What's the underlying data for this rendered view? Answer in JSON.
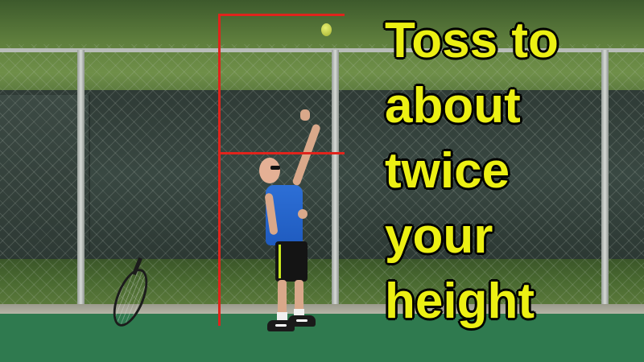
{
  "caption": {
    "lines": [
      "Toss to",
      "about",
      "twice",
      "your",
      "height"
    ],
    "color": "#ecf013"
  },
  "markers": {
    "color": "#e0241c"
  },
  "scene": {
    "court_color": "#2f7a4f",
    "shirt_color": "#2d6fd6"
  }
}
